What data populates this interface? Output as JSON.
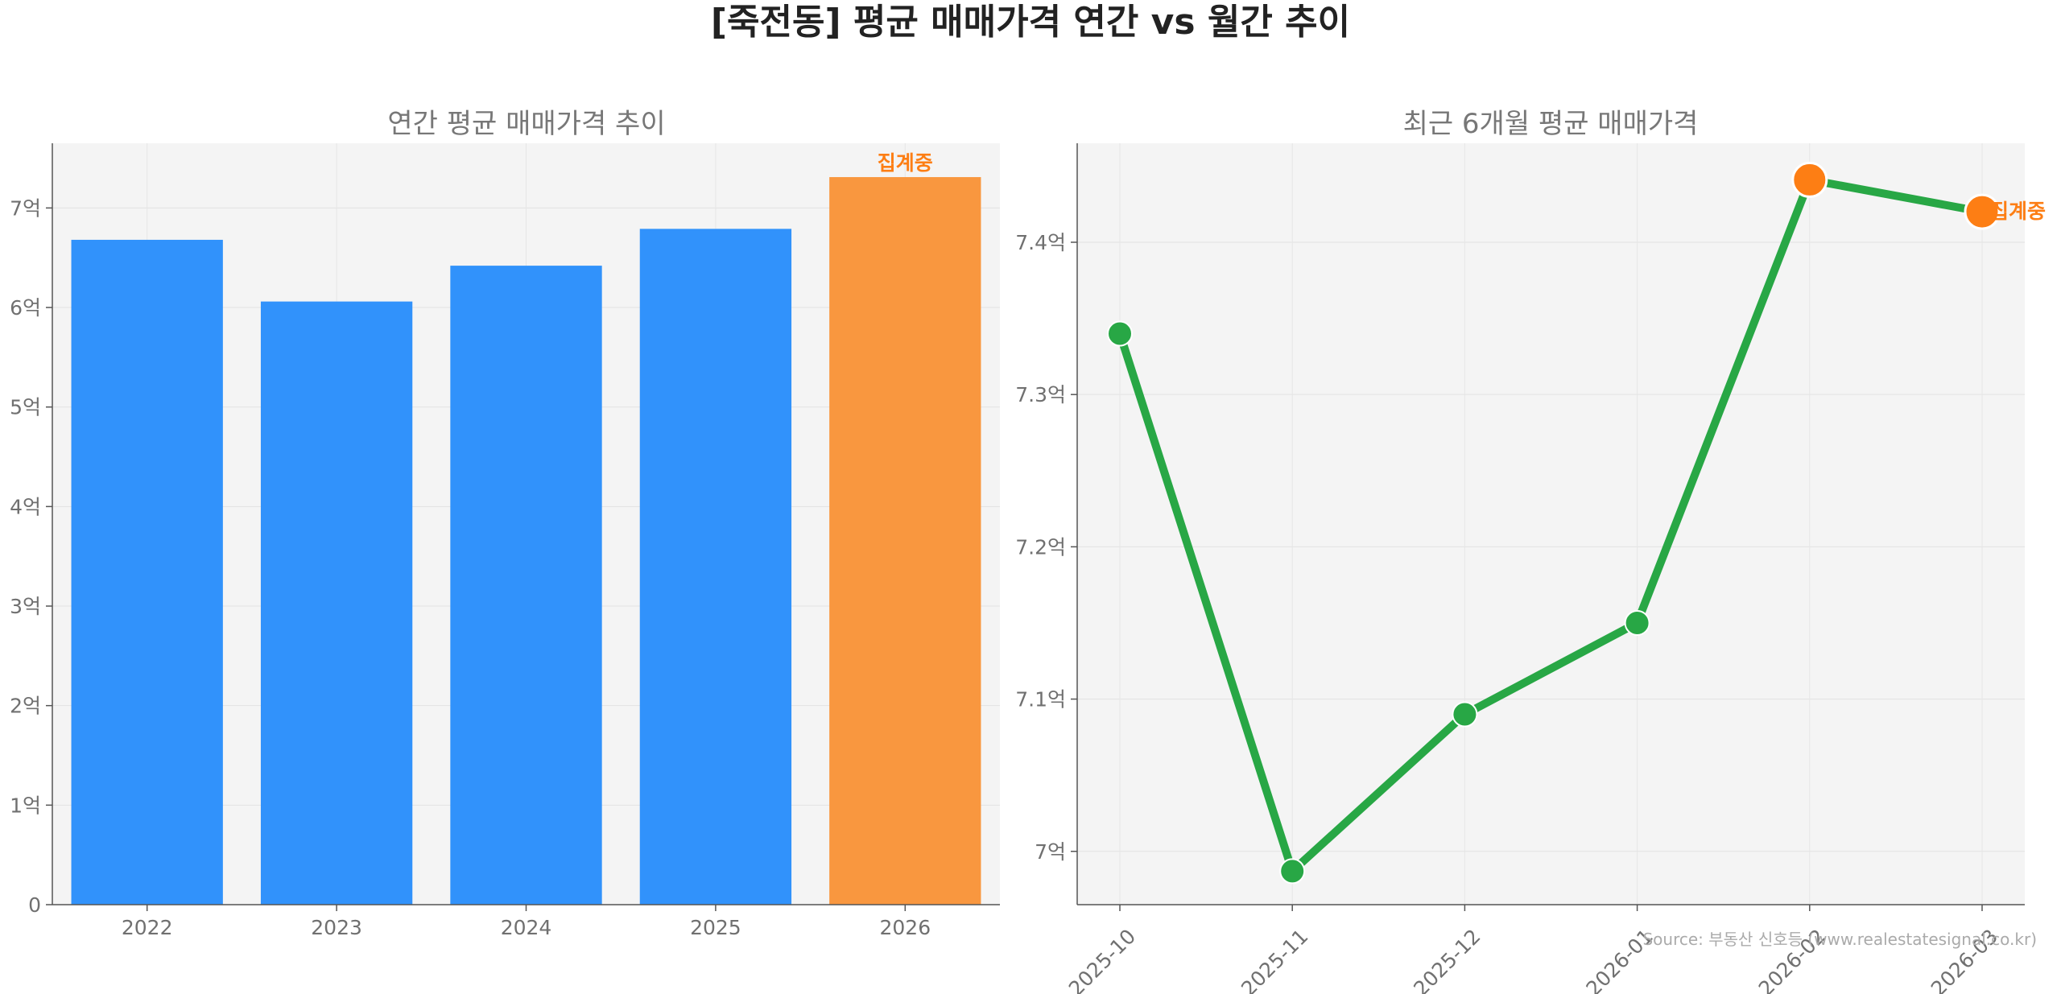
{
  "figure": {
    "title": "[죽전동] 평균 매매가격 연간 vs 월간 추이",
    "source": "Source: 부동산 신호등 (www.realestatesignal.co.kr)"
  },
  "colors": {
    "bar": "#3192fb",
    "bar_highlight": "#f9973f",
    "line": "#28a745",
    "marker_highlight": "#fd7e14",
    "annotation": "#fd7e14",
    "plot_bg": "#f4f4f4",
    "axis_text": "#707070",
    "title_text": "#222222",
    "subtitle_text": "#777777"
  },
  "chart_data": [
    {
      "type": "bar",
      "title": "연간 평균 매매가격 추이",
      "categories": [
        "2022",
        "2023",
        "2024",
        "2025",
        "2026"
      ],
      "values": [
        6.68,
        6.06,
        6.42,
        6.79,
        7.31
      ],
      "highlight_index": 4,
      "annotation": "집계중",
      "ylim": [
        0,
        7.65
      ],
      "yticks": [
        0,
        1,
        2,
        3,
        4,
        5,
        6,
        7
      ],
      "ytick_labels": [
        "0",
        "1억",
        "2억",
        "3억",
        "4억",
        "5억",
        "6억",
        "7억"
      ],
      "grid": true
    },
    {
      "type": "line",
      "title": "최근 6개월 평균 매매가격",
      "categories": [
        "2025-10",
        "2025-11",
        "2025-12",
        "2026-01",
        "2026-02",
        "2026-03"
      ],
      "values": [
        7.34,
        6.987,
        7.09,
        7.15,
        7.441,
        7.42
      ],
      "highlight_indices": [
        4,
        5
      ],
      "annotation": "집계중",
      "ylim": [
        6.965,
        7.465
      ],
      "yticks": [
        7.0,
        7.1,
        7.2,
        7.3,
        7.4
      ],
      "ytick_labels": [
        "7억",
        "7.1억",
        "7.2억",
        "7.3억",
        "7.4억"
      ],
      "grid": true
    }
  ]
}
